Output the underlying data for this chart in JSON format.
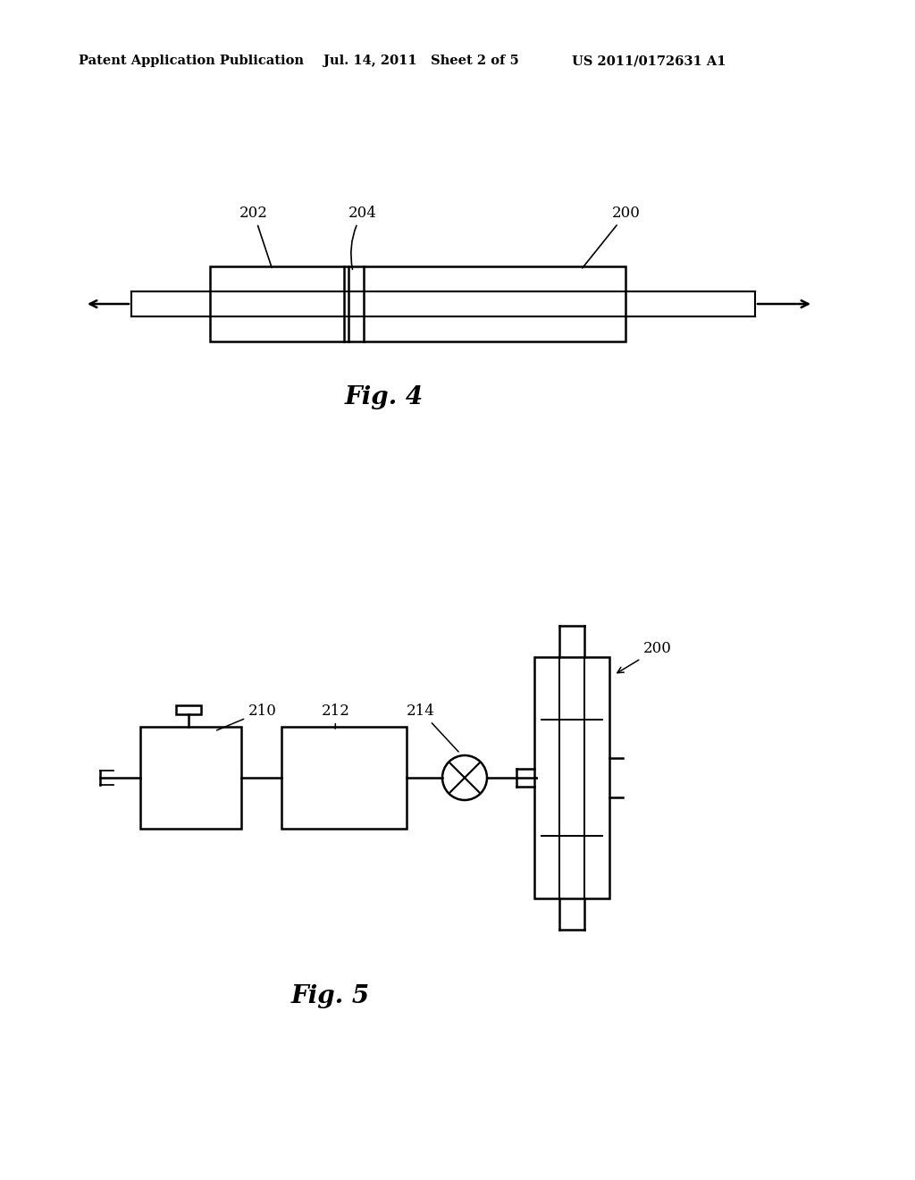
{
  "bg_color": "#ffffff",
  "header_left": "Patent Application Publication",
  "header_mid": "Jul. 14, 2011   Sheet 2 of 5",
  "header_right": "US 2011/0172631 A1",
  "fig4_label": "Fig. 4",
  "fig5_label": "Fig. 5",
  "labels": {
    "200_fig4": "200",
    "202_fig4": "202",
    "204_fig4": "204",
    "200_fig5": "200",
    "210_fig5": "210",
    "212_fig5": "212",
    "214_fig5": "214"
  }
}
